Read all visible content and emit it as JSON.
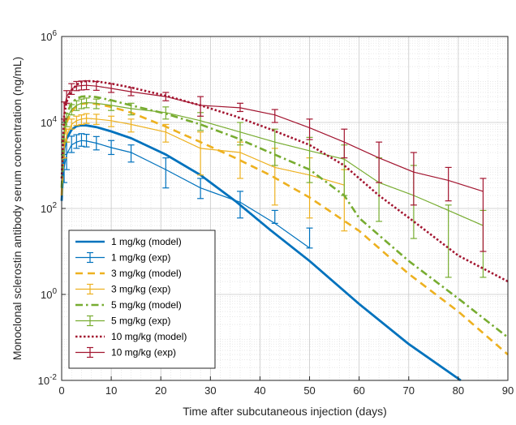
{
  "chart_data": {
    "type": "line",
    "xlabel": "Time after subcutaneous injection (days)",
    "ylabel": "Monoclonal sclerostin antibody serum concentration (ng/mL)",
    "xlim": [
      0,
      90
    ],
    "ylim": [
      0.01,
      1000000
    ],
    "yscale": "log",
    "xticks": [
      "0",
      "10",
      "20",
      "30",
      "40",
      "50",
      "60",
      "70",
      "80",
      "90"
    ],
    "yticks": [
      {
        "value": 0.01,
        "base": "10",
        "exp": "-2"
      },
      {
        "value": 1,
        "base": "10",
        "exp": "0"
      },
      {
        "value": 100,
        "base": "10",
        "exp": "2"
      },
      {
        "value": 10000,
        "base": "10",
        "exp": "4"
      },
      {
        "value": 1000000,
        "base": "10",
        "exp": "6"
      }
    ],
    "grid": true,
    "legend_position": "bottom-left",
    "series": [
      {
        "name": "1 mg/kg (model)",
        "kind": "model",
        "color": "#0072BD",
        "dash": "solid",
        "x": [
          0,
          0.5,
          1,
          2,
          3,
          4,
          5,
          7,
          10,
          14,
          21,
          28,
          35,
          42,
          50,
          60,
          70,
          80.5
        ],
        "y": [
          150,
          2500,
          4200,
          6800,
          8200,
          8600,
          8500,
          7800,
          6200,
          4300,
          1800,
          600,
          150,
          32,
          6,
          0.6,
          0.07,
          0.01
        ]
      },
      {
        "name": "1 mg/kg (exp)",
        "kind": "exp",
        "color": "#0072BD",
        "x": [
          0.5,
          1,
          2,
          3,
          4,
          5,
          7,
          10,
          14,
          21,
          28,
          36,
          43,
          50
        ],
        "y": [
          900,
          1800,
          3000,
          3500,
          3800,
          3700,
          3300,
          2600,
          2000,
          800,
          300,
          140,
          45,
          12
        ],
        "lo": [
          400,
          800,
          2000,
          2500,
          2800,
          2700,
          2300,
          1800,
          1200,
          300,
          170,
          60,
          45,
          12
        ],
        "hi": [
          1800,
          3500,
          4800,
          5200,
          5500,
          5300,
          4700,
          3800,
          3000,
          1500,
          500,
          250,
          90,
          35
        ]
      },
      {
        "name": "3 mg/kg (model)",
        "kind": "model",
        "color": "#EDB120",
        "dash": "dash",
        "x": [
          0,
          0.5,
          1,
          2,
          3,
          4,
          5,
          7,
          10,
          14,
          21,
          28,
          35,
          42,
          50,
          60,
          70,
          80,
          90
        ],
        "y": [
          200,
          5000,
          10000,
          18000,
          24000,
          27000,
          28000,
          27000,
          23000,
          17000,
          8000,
          3500,
          1500,
          600,
          180,
          30,
          3,
          0.4,
          0.04
        ]
      },
      {
        "name": "3 mg/kg (exp)",
        "kind": "exp",
        "color": "#EDB120",
        "x": [
          0.5,
          1,
          2,
          3,
          4,
          5,
          7,
          10,
          14,
          21,
          28,
          36,
          43,
          50,
          57
        ],
        "y": [
          2500,
          5000,
          9000,
          11000,
          12000,
          12500,
          12000,
          11000,
          9000,
          6000,
          2500,
          2000,
          900,
          600,
          350
        ],
        "lo": [
          1500,
          3500,
          7000,
          8500,
          9000,
          9500,
          9000,
          8000,
          6000,
          3500,
          600,
          500,
          120,
          60,
          30
        ],
        "hi": [
          4000,
          7000,
          12000,
          14000,
          15000,
          16000,
          15500,
          14000,
          12000,
          9000,
          6000,
          3500,
          2500,
          1500,
          800
        ]
      },
      {
        "name": "5 mg/kg (model)",
        "kind": "model",
        "color": "#77AC30",
        "dash": "dashdot",
        "x": [
          0,
          0.5,
          1,
          2,
          3,
          4,
          5,
          7,
          10,
          14,
          21,
          28,
          35,
          42,
          50,
          57,
          60,
          70,
          80,
          90
        ],
        "y": [
          300,
          8000,
          16000,
          28000,
          36000,
          40000,
          41000,
          39000,
          33000,
          25000,
          16000,
          9000,
          4500,
          2000,
          800,
          200,
          60,
          6,
          0.8,
          0.1
        ]
      },
      {
        "name": "5 mg/kg (exp)",
        "kind": "exp",
        "color": "#77AC30",
        "x": [
          0.5,
          1,
          2,
          3,
          4,
          5,
          7,
          10,
          14,
          21,
          28,
          36,
          43,
          50,
          57,
          64,
          71,
          78,
          85
        ],
        "y": [
          6000,
          12000,
          20000,
          25000,
          28000,
          29000,
          28000,
          25000,
          21000,
          17000,
          11000,
          6000,
          3500,
          2200,
          1400,
          400,
          200,
          90,
          40
        ],
        "lo": [
          3500,
          8000,
          15000,
          19000,
          21000,
          22000,
          21000,
          19000,
          15000,
          12000,
          6500,
          3000,
          1000,
          400,
          200,
          50,
          20,
          2.5,
          2.5
        ],
        "hi": [
          9000,
          16000,
          26000,
          32000,
          35000,
          37000,
          35000,
          32000,
          28000,
          23000,
          17000,
          10000,
          7000,
          4500,
          3000,
          1500,
          1000,
          120,
          90
        ]
      },
      {
        "name": "10 mg/kg (model)",
        "kind": "model",
        "color": "#A2142F",
        "dash": "dot",
        "x": [
          0,
          0.5,
          1,
          2,
          3,
          4,
          5,
          7,
          10,
          14,
          21,
          28,
          35,
          42,
          50,
          57,
          64,
          71,
          80,
          90
        ],
        "y": [
          500,
          15000,
          30000,
          55000,
          75000,
          88000,
          92000,
          90000,
          80000,
          65000,
          42000,
          25000,
          14000,
          7000,
          3000,
          1000,
          200,
          50,
          8,
          2
        ]
      },
      {
        "name": "10 mg/kg (exp)",
        "kind": "exp",
        "color": "#A2142F",
        "x": [
          0.5,
          1,
          2,
          3,
          4,
          5,
          7,
          10,
          14,
          21,
          28,
          36,
          43,
          50,
          57,
          64,
          71,
          78,
          85
        ],
        "y": [
          20000,
          40000,
          60000,
          70000,
          72000,
          73000,
          70000,
          62000,
          52000,
          40000,
          25000,
          22000,
          15000,
          7500,
          3500,
          1500,
          700,
          450,
          250
        ],
        "lo": [
          12000,
          28000,
          45000,
          55000,
          57000,
          58000,
          56000,
          50000,
          42000,
          32000,
          14000,
          18000,
          10000,
          4000,
          1500,
          400,
          120,
          150,
          10
        ],
        "hi": [
          30000,
          55000,
          80000,
          90000,
          92000,
          93000,
          90000,
          80000,
          65000,
          50000,
          40000,
          28000,
          20000,
          12000,
          7000,
          3500,
          2000,
          900,
          500
        ]
      }
    ]
  }
}
